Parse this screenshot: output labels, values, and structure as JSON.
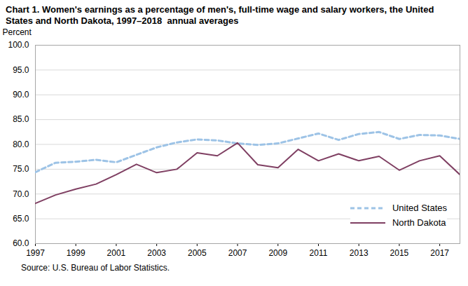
{
  "chart_data": {
    "type": "line",
    "title": "Chart 1. Women's earnings as a percentage of men's, full-time wage and salary workers, the United States and North Dakota, 1997–2018  annual averages",
    "y_label": "Percent",
    "caption": "Source: U.S. Bureau of Labor Statistics.",
    "x": [
      1997,
      1998,
      1999,
      2000,
      2001,
      2002,
      2003,
      2004,
      2005,
      2006,
      2007,
      2008,
      2009,
      2010,
      2011,
      2012,
      2013,
      2014,
      2015,
      2016,
      2017,
      2018
    ],
    "series": [
      {
        "name": "United States",
        "color": "#9dc3e6",
        "line_style": "dashed",
        "values": [
          74.4,
          76.3,
          76.5,
          76.9,
          76.4,
          77.9,
          79.4,
          80.4,
          81.0,
          80.8,
          80.2,
          79.9,
          80.2,
          81.2,
          82.2,
          80.9,
          82.1,
          82.5,
          81.1,
          81.9,
          81.8,
          81.1
        ]
      },
      {
        "name": "North Dakota",
        "color": "#7f3f62",
        "line_style": "solid",
        "values": [
          68.1,
          69.8,
          71.0,
          72.0,
          73.9,
          76.0,
          74.3,
          75.0,
          78.3,
          77.7,
          80.3,
          75.9,
          75.3,
          79.0,
          76.7,
          78.1,
          76.7,
          77.6,
          74.8,
          76.7,
          77.7,
          73.9
        ]
      }
    ],
    "xlim": [
      1997,
      2018
    ],
    "xticks": [
      1997,
      1999,
      2001,
      2003,
      2005,
      2007,
      2009,
      2011,
      2013,
      2015,
      2017
    ],
    "ylim": [
      60,
      100
    ],
    "yticks": [
      {
        "value": 60,
        "label": "60.0"
      },
      {
        "value": 65,
        "label": "65.0"
      },
      {
        "value": 70,
        "label": "70.0"
      },
      {
        "value": 75,
        "label": "75.0"
      },
      {
        "value": 80,
        "label": "80.0"
      },
      {
        "value": 85,
        "label": "85.0"
      },
      {
        "value": 90,
        "label": "90.0"
      },
      {
        "value": 95,
        "label": "95.0"
      },
      {
        "value": 100,
        "label": "100.0"
      }
    ],
    "grid": true,
    "legend": "lower right"
  }
}
